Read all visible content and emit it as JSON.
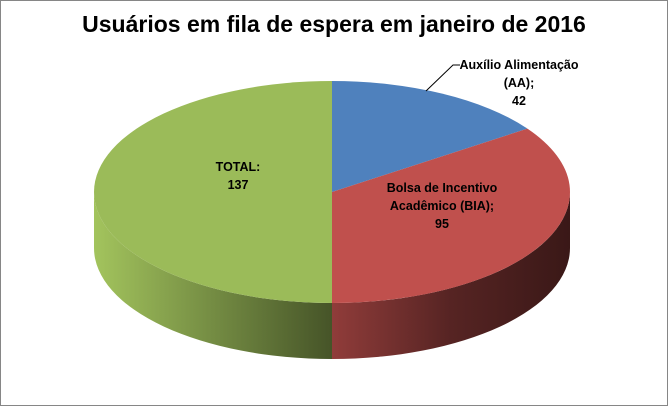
{
  "chart_data": {
    "type": "pie",
    "style": "3d",
    "title": "Usuários em fila de espera em janeiro de 2016",
    "slices": [
      {
        "label_lines": [
          "Auxílio Alimentação",
          "(AA);",
          "42"
        ],
        "name": "Auxílio Alimentação (AA)",
        "value": 42,
        "color": "#4F81BD"
      },
      {
        "label_lines": [
          "Bolsa de Incentivo",
          "Acadêmico (BIA);",
          "95"
        ],
        "name": "Bolsa de Incentivo Acadêmico (BIA)",
        "value": 95,
        "color": "#C0504D"
      },
      {
        "label_lines": [
          "TOTAL:",
          "137"
        ],
        "name": "TOTAL",
        "value": 137,
        "color": "#9BBB59"
      }
    ],
    "legend": "none"
  }
}
